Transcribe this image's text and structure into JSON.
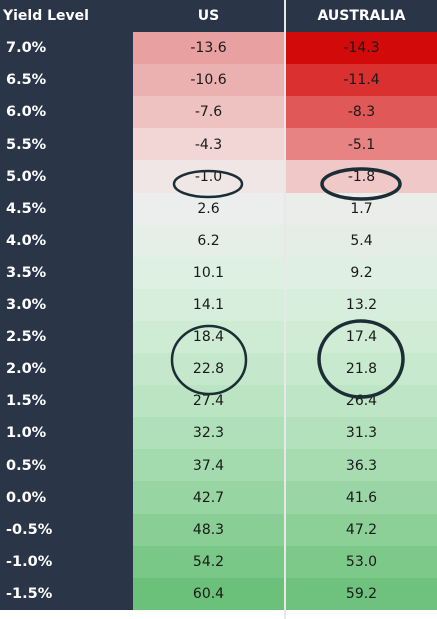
{
  "columns": {
    "yield_label": "Yield Level",
    "us_label": "US",
    "au_label": "AUSTRALIA"
  },
  "rows": [
    {
      "yield": "7.0%",
      "us": "-13.6",
      "au": "-14.3",
      "us_color": "#e8a0a0",
      "au_color": "#d20a0a"
    },
    {
      "yield": "6.5%",
      "us": "-10.6",
      "au": "-11.4",
      "us_color": "#ebb0b0",
      "au_color": "#db3030"
    },
    {
      "yield": "6.0%",
      "us": "-7.6",
      "au": "-8.3",
      "us_color": "#efc2c2",
      "au_color": "#e05858"
    },
    {
      "yield": "5.5%",
      "us": "-4.3",
      "au": "-5.1",
      "us_color": "#f2d5d5",
      "au_color": "#e78383"
    },
    {
      "yield": "5.0%",
      "us": "-1.0",
      "au": "-1.8",
      "us_color": "#f1e6e6",
      "au_color": "#f0c8c8"
    },
    {
      "yield": "4.5%",
      "us": "2.6",
      "au": "1.7",
      "us_color": "#ebeeec",
      "au_color": "#ebedeb"
    },
    {
      "yield": "4.0%",
      "us": "6.2",
      "au": "5.4",
      "us_color": "#e5efe7",
      "au_color": "#e5eee6"
    },
    {
      "yield": "3.5%",
      "us": "10.1",
      "au": "9.2",
      "us_color": "#def0e2",
      "au_color": "#dfefe3"
    },
    {
      "yield": "3.0%",
      "us": "14.1",
      "au": "13.2",
      "us_color": "#d6eedb",
      "au_color": "#d8eedc"
    },
    {
      "yield": "2.5%",
      "us": "18.4",
      "au": "17.4",
      "us_color": "#ceebd4",
      "au_color": "#d0ecd5"
    },
    {
      "yield": "2.0%",
      "us": "22.8",
      "au": "21.8",
      "us_color": "#c5e8cc",
      "au_color": "#c7e9ce"
    },
    {
      "yield": "1.5%",
      "us": "27.4",
      "au": "26.4",
      "us_color": "#bbe4c3",
      "au_color": "#bee5c5"
    },
    {
      "yield": "1.0%",
      "us": "32.3",
      "au": "31.3",
      "us_color": "#b0e0b9",
      "au_color": "#b3e1bc"
    },
    {
      "yield": "0.5%",
      "us": "37.4",
      "au": "36.3",
      "us_color": "#a4dbae",
      "au_color": "#a7dcb1"
    },
    {
      "yield": "0.0%",
      "us": "42.7",
      "au": "41.6",
      "us_color": "#97d5a2",
      "au_color": "#9ad6a5"
    },
    {
      "yield": "-0.5%",
      "us": "48.3",
      "au": "47.2",
      "us_color": "#89cf95",
      "au_color": "#8cd098"
    },
    {
      "yield": "-1.0%",
      "us": "54.2",
      "au": "53.0",
      "us_color": "#7ac887",
      "au_color": "#7dc98a"
    },
    {
      "yield": "-1.5%",
      "us": "60.4",
      "au": "59.2",
      "us_color": "#6bc07a",
      "au_color": "#6fc27d"
    }
  ],
  "annotation_color": "#1b2e35"
}
